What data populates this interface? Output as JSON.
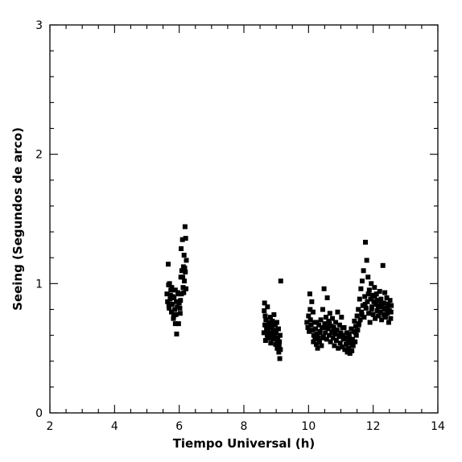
{
  "chart_data": {
    "type": "scatter",
    "title": "",
    "xlabel": "Tiempo Universal (h)",
    "ylabel": "Seeing (Segundos de arco)",
    "xlim": [
      2,
      14
    ],
    "ylim": [
      0,
      3
    ],
    "xticks": [
      2,
      4,
      6,
      8,
      10,
      12,
      14
    ],
    "xtick_labels": [
      "2",
      "4",
      "6",
      "8",
      "10",
      "12",
      "14"
    ],
    "yticks": [
      0,
      1,
      2,
      3
    ],
    "ytick_labels": [
      "0",
      "1",
      "2",
      "3"
    ],
    "grid": false,
    "marker": "square",
    "marker_color": "#000000",
    "series": [
      {
        "points": [
          [
            5.62,
            0.92
          ],
          [
            5.64,
            0.86
          ],
          [
            5.66,
            1.15
          ],
          [
            5.67,
            0.99
          ],
          [
            5.69,
            0.81
          ],
          [
            5.7,
            1.0
          ],
          [
            5.72,
            0.88
          ],
          [
            5.74,
            0.95
          ],
          [
            5.76,
            0.78
          ],
          [
            5.78,
            0.84
          ],
          [
            5.8,
            0.9
          ],
          [
            5.82,
            0.73
          ],
          [
            5.84,
            0.89
          ],
          [
            5.86,
            0.8
          ],
          [
            5.88,
            0.95
          ],
          [
            5.9,
            0.76
          ],
          [
            5.92,
            0.61
          ],
          [
            5.94,
            0.82
          ],
          [
            5.96,
            0.93
          ],
          [
            5.98,
            0.69
          ],
          [
            6.0,
            0.85
          ],
          [
            6.02,
            0.81
          ],
          [
            6.04,
            0.87
          ],
          [
            6.05,
            1.05
          ],
          [
            6.06,
            1.27
          ],
          [
            6.07,
            0.92
          ],
          [
            6.08,
            1.1
          ],
          [
            6.1,
            1.34
          ],
          [
            6.12,
            0.97
          ],
          [
            6.13,
            1.13
          ],
          [
            6.15,
            1.22
          ],
          [
            6.16,
            1.02
          ],
          [
            6.18,
            1.44
          ],
          [
            6.19,
            1.09
          ],
          [
            6.2,
            1.35
          ],
          [
            6.21,
            0.96
          ],
          [
            6.22,
            1.18
          ],
          [
            5.73,
            0.91
          ],
          [
            5.77,
            0.97
          ],
          [
            5.83,
            0.75
          ],
          [
            5.91,
            0.86
          ],
          [
            5.97,
            0.92
          ],
          [
            6.03,
            0.77
          ],
          [
            6.11,
            1.05
          ],
          [
            6.14,
            0.93
          ],
          [
            6.17,
            1.12
          ],
          [
            5.68,
            0.83
          ],
          [
            5.88,
            0.69
          ],
          [
            8.62,
            0.62
          ],
          [
            8.63,
            0.79
          ],
          [
            8.64,
            0.85
          ],
          [
            8.65,
            0.68
          ],
          [
            8.67,
            0.56
          ],
          [
            8.68,
            0.72
          ],
          [
            8.7,
            0.65
          ],
          [
            8.72,
            0.6
          ],
          [
            8.73,
            0.82
          ],
          [
            8.75,
            0.63
          ],
          [
            8.77,
            0.7
          ],
          [
            8.78,
            0.58
          ],
          [
            8.8,
            0.67
          ],
          [
            8.82,
            0.74
          ],
          [
            8.83,
            0.54
          ],
          [
            8.85,
            0.66
          ],
          [
            8.87,
            0.61
          ],
          [
            8.88,
            0.71
          ],
          [
            8.9,
            0.57
          ],
          [
            8.92,
            0.64
          ],
          [
            8.93,
            0.76
          ],
          [
            8.95,
            0.59
          ],
          [
            8.97,
            0.68
          ],
          [
            8.98,
            0.53
          ],
          [
            9.0,
            0.62
          ],
          [
            9.02,
            0.7
          ],
          [
            9.03,
            0.5
          ],
          [
            9.05,
            0.58
          ],
          [
            9.07,
            0.65
          ],
          [
            9.08,
            0.47
          ],
          [
            9.1,
            0.55
          ],
          [
            9.11,
            0.42
          ],
          [
            9.12,
            0.6
          ],
          [
            9.13,
            0.49
          ],
          [
            9.14,
            1.02
          ],
          [
            8.66,
            0.75
          ],
          [
            8.74,
            0.58
          ],
          [
            8.81,
            0.62
          ],
          [
            8.89,
            0.69
          ],
          [
            8.96,
            0.63
          ],
          [
            9.04,
            0.56
          ],
          [
            9.09,
            0.52
          ],
          [
            8.71,
            0.66
          ],
          [
            8.86,
            0.6
          ],
          [
            9.95,
            0.7
          ],
          [
            9.98,
            0.66
          ],
          [
            10.0,
            0.75
          ],
          [
            10.02,
            0.63
          ],
          [
            10.04,
            0.92
          ],
          [
            10.05,
            0.8
          ],
          [
            10.06,
            0.72
          ],
          [
            10.08,
            0.68
          ],
          [
            10.1,
            0.86
          ],
          [
            10.12,
            0.64
          ],
          [
            10.14,
            0.78
          ],
          [
            10.16,
            0.6
          ],
          [
            10.18,
            0.7
          ],
          [
            10.2,
            0.57
          ],
          [
            10.22,
            0.65
          ],
          [
            10.24,
            0.53
          ],
          [
            10.26,
            0.61
          ],
          [
            10.28,
            0.5
          ],
          [
            10.3,
            0.58
          ],
          [
            10.32,
            0.68
          ],
          [
            10.34,
            0.55
          ],
          [
            10.36,
            0.63
          ],
          [
            10.38,
            0.72
          ],
          [
            10.4,
            0.52
          ],
          [
            10.42,
            0.66
          ],
          [
            10.44,
            0.8
          ],
          [
            10.46,
            0.59
          ],
          [
            10.48,
            0.96
          ],
          [
            10.5,
            0.69
          ],
          [
            10.52,
            0.62
          ],
          [
            10.54,
            0.74
          ],
          [
            10.56,
            0.57
          ],
          [
            10.58,
            0.89
          ],
          [
            10.6,
            0.65
          ],
          [
            10.62,
            0.71
          ],
          [
            10.64,
            0.6
          ],
          [
            10.66,
            0.77
          ],
          [
            10.68,
            0.55
          ],
          [
            10.7,
            0.67
          ],
          [
            10.72,
            0.62
          ],
          [
            10.74,
            0.73
          ],
          [
            10.76,
            0.58
          ],
          [
            10.78,
            0.66
          ],
          [
            10.8,
            0.52
          ],
          [
            10.82,
            0.61
          ],
          [
            10.84,
            0.7
          ],
          [
            10.86,
            0.56
          ],
          [
            10.88,
            0.64
          ],
          [
            10.9,
            0.78
          ],
          [
            10.92,
            0.5
          ],
          [
            10.94,
            0.59
          ],
          [
            10.96,
            0.68
          ],
          [
            10.98,
            0.54
          ],
          [
            11.0,
            0.62
          ],
          [
            11.02,
            0.74
          ],
          [
            11.04,
            0.51
          ],
          [
            11.06,
            0.6
          ],
          [
            11.08,
            0.57
          ],
          [
            11.1,
            0.66
          ],
          [
            11.12,
            0.49
          ],
          [
            11.14,
            0.58
          ],
          [
            11.16,
            0.53
          ],
          [
            11.18,
            0.62
          ],
          [
            11.2,
            0.47
          ],
          [
            11.22,
            0.56
          ],
          [
            11.24,
            0.5
          ],
          [
            11.26,
            0.59
          ],
          [
            11.28,
            0.46
          ],
          [
            11.3,
            0.54
          ],
          [
            11.32,
            0.65
          ],
          [
            11.34,
            0.48
          ],
          [
            11.36,
            0.57
          ],
          [
            11.38,
            0.52
          ],
          [
            11.4,
            0.63
          ],
          [
            11.42,
            0.71
          ],
          [
            11.44,
            0.55
          ],
          [
            11.46,
            0.67
          ],
          [
            11.48,
            0.6
          ],
          [
            11.5,
            0.75
          ],
          [
            11.52,
            0.64
          ],
          [
            11.54,
            0.8
          ],
          [
            11.56,
            0.69
          ],
          [
            11.58,
            0.88
          ],
          [
            11.6,
            0.72
          ],
          [
            11.62,
            0.96
          ],
          [
            11.64,
            0.78
          ],
          [
            11.66,
            1.02
          ],
          [
            11.68,
            0.83
          ],
          [
            11.7,
            1.1
          ],
          [
            11.72,
            0.74
          ],
          [
            11.74,
            0.9
          ],
          [
            11.76,
            1.32
          ],
          [
            11.78,
            0.81
          ],
          [
            11.8,
            1.18
          ],
          [
            11.82,
            0.86
          ],
          [
            11.84,
            1.05
          ],
          [
            11.86,
            0.77
          ],
          [
            11.88,
            0.95
          ],
          [
            11.9,
            0.7
          ],
          [
            11.92,
            0.88
          ],
          [
            11.94,
            1.0
          ],
          [
            11.96,
            0.82
          ],
          [
            11.98,
            0.91
          ],
          [
            12.0,
            0.76
          ],
          [
            12.02,
            0.86
          ],
          [
            12.04,
            0.97
          ],
          [
            12.06,
            0.73
          ],
          [
            12.08,
            0.84
          ],
          [
            12.1,
            0.92
          ],
          [
            12.12,
            0.79
          ],
          [
            12.14,
            0.87
          ],
          [
            12.16,
            0.75
          ],
          [
            12.18,
            0.83
          ],
          [
            12.2,
            0.94
          ],
          [
            12.22,
            0.78
          ],
          [
            12.24,
            0.88
          ],
          [
            12.26,
            0.72
          ],
          [
            12.28,
            0.82
          ],
          [
            12.3,
            1.14
          ],
          [
            12.32,
            0.76
          ],
          [
            12.34,
            0.85
          ],
          [
            12.36,
            0.93
          ],
          [
            12.38,
            0.74
          ],
          [
            12.4,
            0.81
          ],
          [
            12.42,
            0.89
          ],
          [
            12.44,
            0.77
          ],
          [
            12.46,
            0.84
          ],
          [
            12.48,
            0.7
          ],
          [
            12.5,
            0.79
          ],
          [
            12.52,
            0.87
          ],
          [
            12.54,
            0.73
          ],
          [
            12.56,
            0.83
          ],
          [
            10.15,
            0.55
          ],
          [
            10.35,
            0.62
          ],
          [
            10.55,
            0.66
          ],
          [
            10.75,
            0.63
          ],
          [
            10.95,
            0.6
          ],
          [
            11.15,
            0.58
          ],
          [
            11.35,
            0.52
          ],
          [
            11.55,
            0.68
          ],
          [
            11.75,
            0.84
          ],
          [
            11.95,
            0.8
          ],
          [
            12.15,
            0.82
          ],
          [
            12.35,
            0.8
          ],
          [
            12.55,
            0.78
          ],
          [
            10.25,
            0.7
          ],
          [
            10.45,
            0.58
          ],
          [
            10.65,
            0.69
          ],
          [
            10.85,
            0.64
          ],
          [
            11.05,
            0.66
          ],
          [
            11.25,
            0.61
          ],
          [
            11.45,
            0.62
          ],
          [
            11.65,
            0.76
          ],
          [
            11.85,
            0.92
          ],
          [
            12.05,
            0.9
          ],
          [
            12.25,
            0.85
          ],
          [
            12.45,
            0.82
          ]
        ]
      }
    ]
  }
}
